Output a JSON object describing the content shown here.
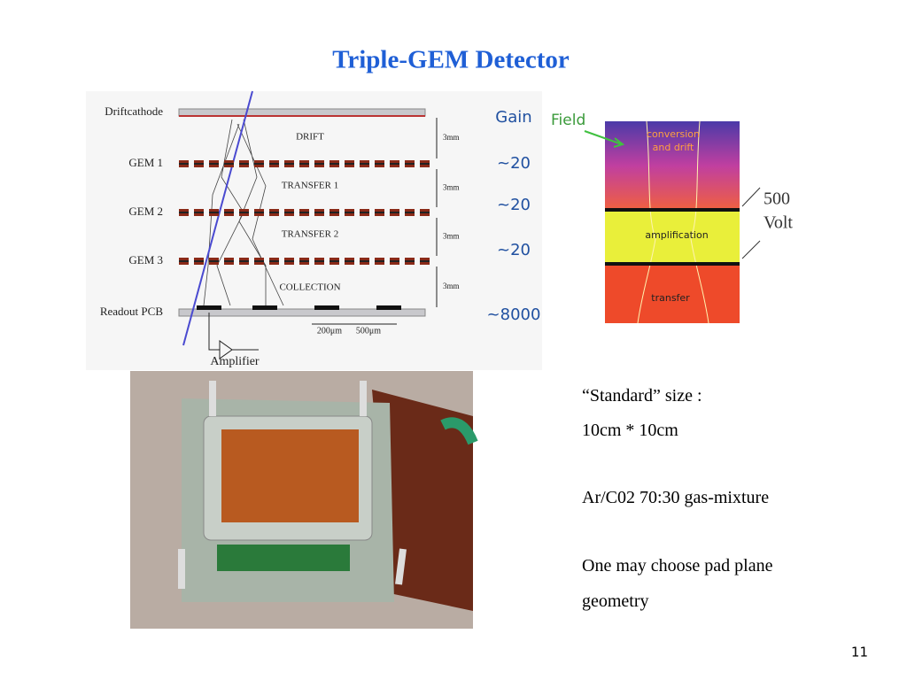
{
  "title": "Triple-GEM Detector",
  "diagram": {
    "layers": [
      "Driftcathode",
      "GEM 1",
      "GEM 2",
      "GEM 3",
      "Readout PCB"
    ],
    "gaps": [
      "DRIFT",
      "TRANSFER 1",
      "TRANSFER 2",
      "COLLECTION"
    ],
    "gap_size": "3mm",
    "amplifier": "Amplifier",
    "dims": [
      "200μm",
      "500μm"
    ],
    "gain_header": "Gain",
    "gains": [
      "~20",
      "~20",
      "~20",
      "~8000"
    ]
  },
  "field_panel": {
    "field": "Field",
    "conversion": [
      "conversion",
      "and drift"
    ],
    "amplification": "amplification",
    "transfer": "transfer",
    "voltage": [
      "500",
      "Volt"
    ]
  },
  "text": [
    "“Standard” size :",
    "10cm * 10cm",
    "Ar/C02 70:30 gas-mixture",
    "One may choose pad plane",
    "geometry"
  ],
  "page_number": "11"
}
